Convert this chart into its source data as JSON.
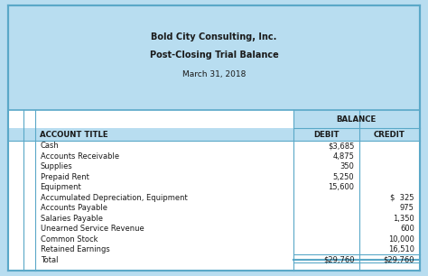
{
  "title_line1": "Bold City Consulting, Inc.",
  "title_line2": "Post-Closing Trial Balance",
  "title_line3": "March 31, 2018",
  "col_header_balance": "BALANCE",
  "col_header_account": "ACCOUNT TITLE",
  "col_header_debit": "DEBIT",
  "col_header_credit": "CREDIT",
  "rows": [
    {
      "account": "Cash",
      "debit": "$3,685",
      "credit": ""
    },
    {
      "account": "Accounts Receivable",
      "debit": "4,875",
      "credit": ""
    },
    {
      "account": "Supplies",
      "debit": "350",
      "credit": ""
    },
    {
      "account": "Prepaid Rent",
      "debit": "5,250",
      "credit": ""
    },
    {
      "account": "Equipment",
      "debit": "15,600",
      "credit": ""
    },
    {
      "account": "Accumulated Depreciation, Equipment",
      "debit": "",
      "credit": "$  325"
    },
    {
      "account": "Accounts Payable",
      "debit": "",
      "credit": "975"
    },
    {
      "account": "Salaries Payable",
      "debit": "",
      "credit": "1,350"
    },
    {
      "account": "Unearned Service Revenue",
      "debit": "",
      "credit": "600"
    },
    {
      "account": "Common Stock",
      "debit": "",
      "credit": "10,000"
    },
    {
      "account": "Retained Earnings",
      "debit": "",
      "credit": "16,510"
    },
    {
      "account": "Total",
      "debit": "$29,760",
      "credit": "$29,760"
    }
  ],
  "bg_color": "#b8ddf0",
  "table_bg": "#ffffff",
  "border_color": "#5aa8c8",
  "text_color": "#1a1a1a",
  "title_color": "#1a1a1a",
  "title1_fontsize": 7.0,
  "title2_fontsize": 7.0,
  "title3_fontsize": 6.5,
  "header_fontsize": 6.2,
  "data_fontsize": 6.0,
  "fig_width": 4.74,
  "fig_height": 3.06,
  "dpi": 100
}
